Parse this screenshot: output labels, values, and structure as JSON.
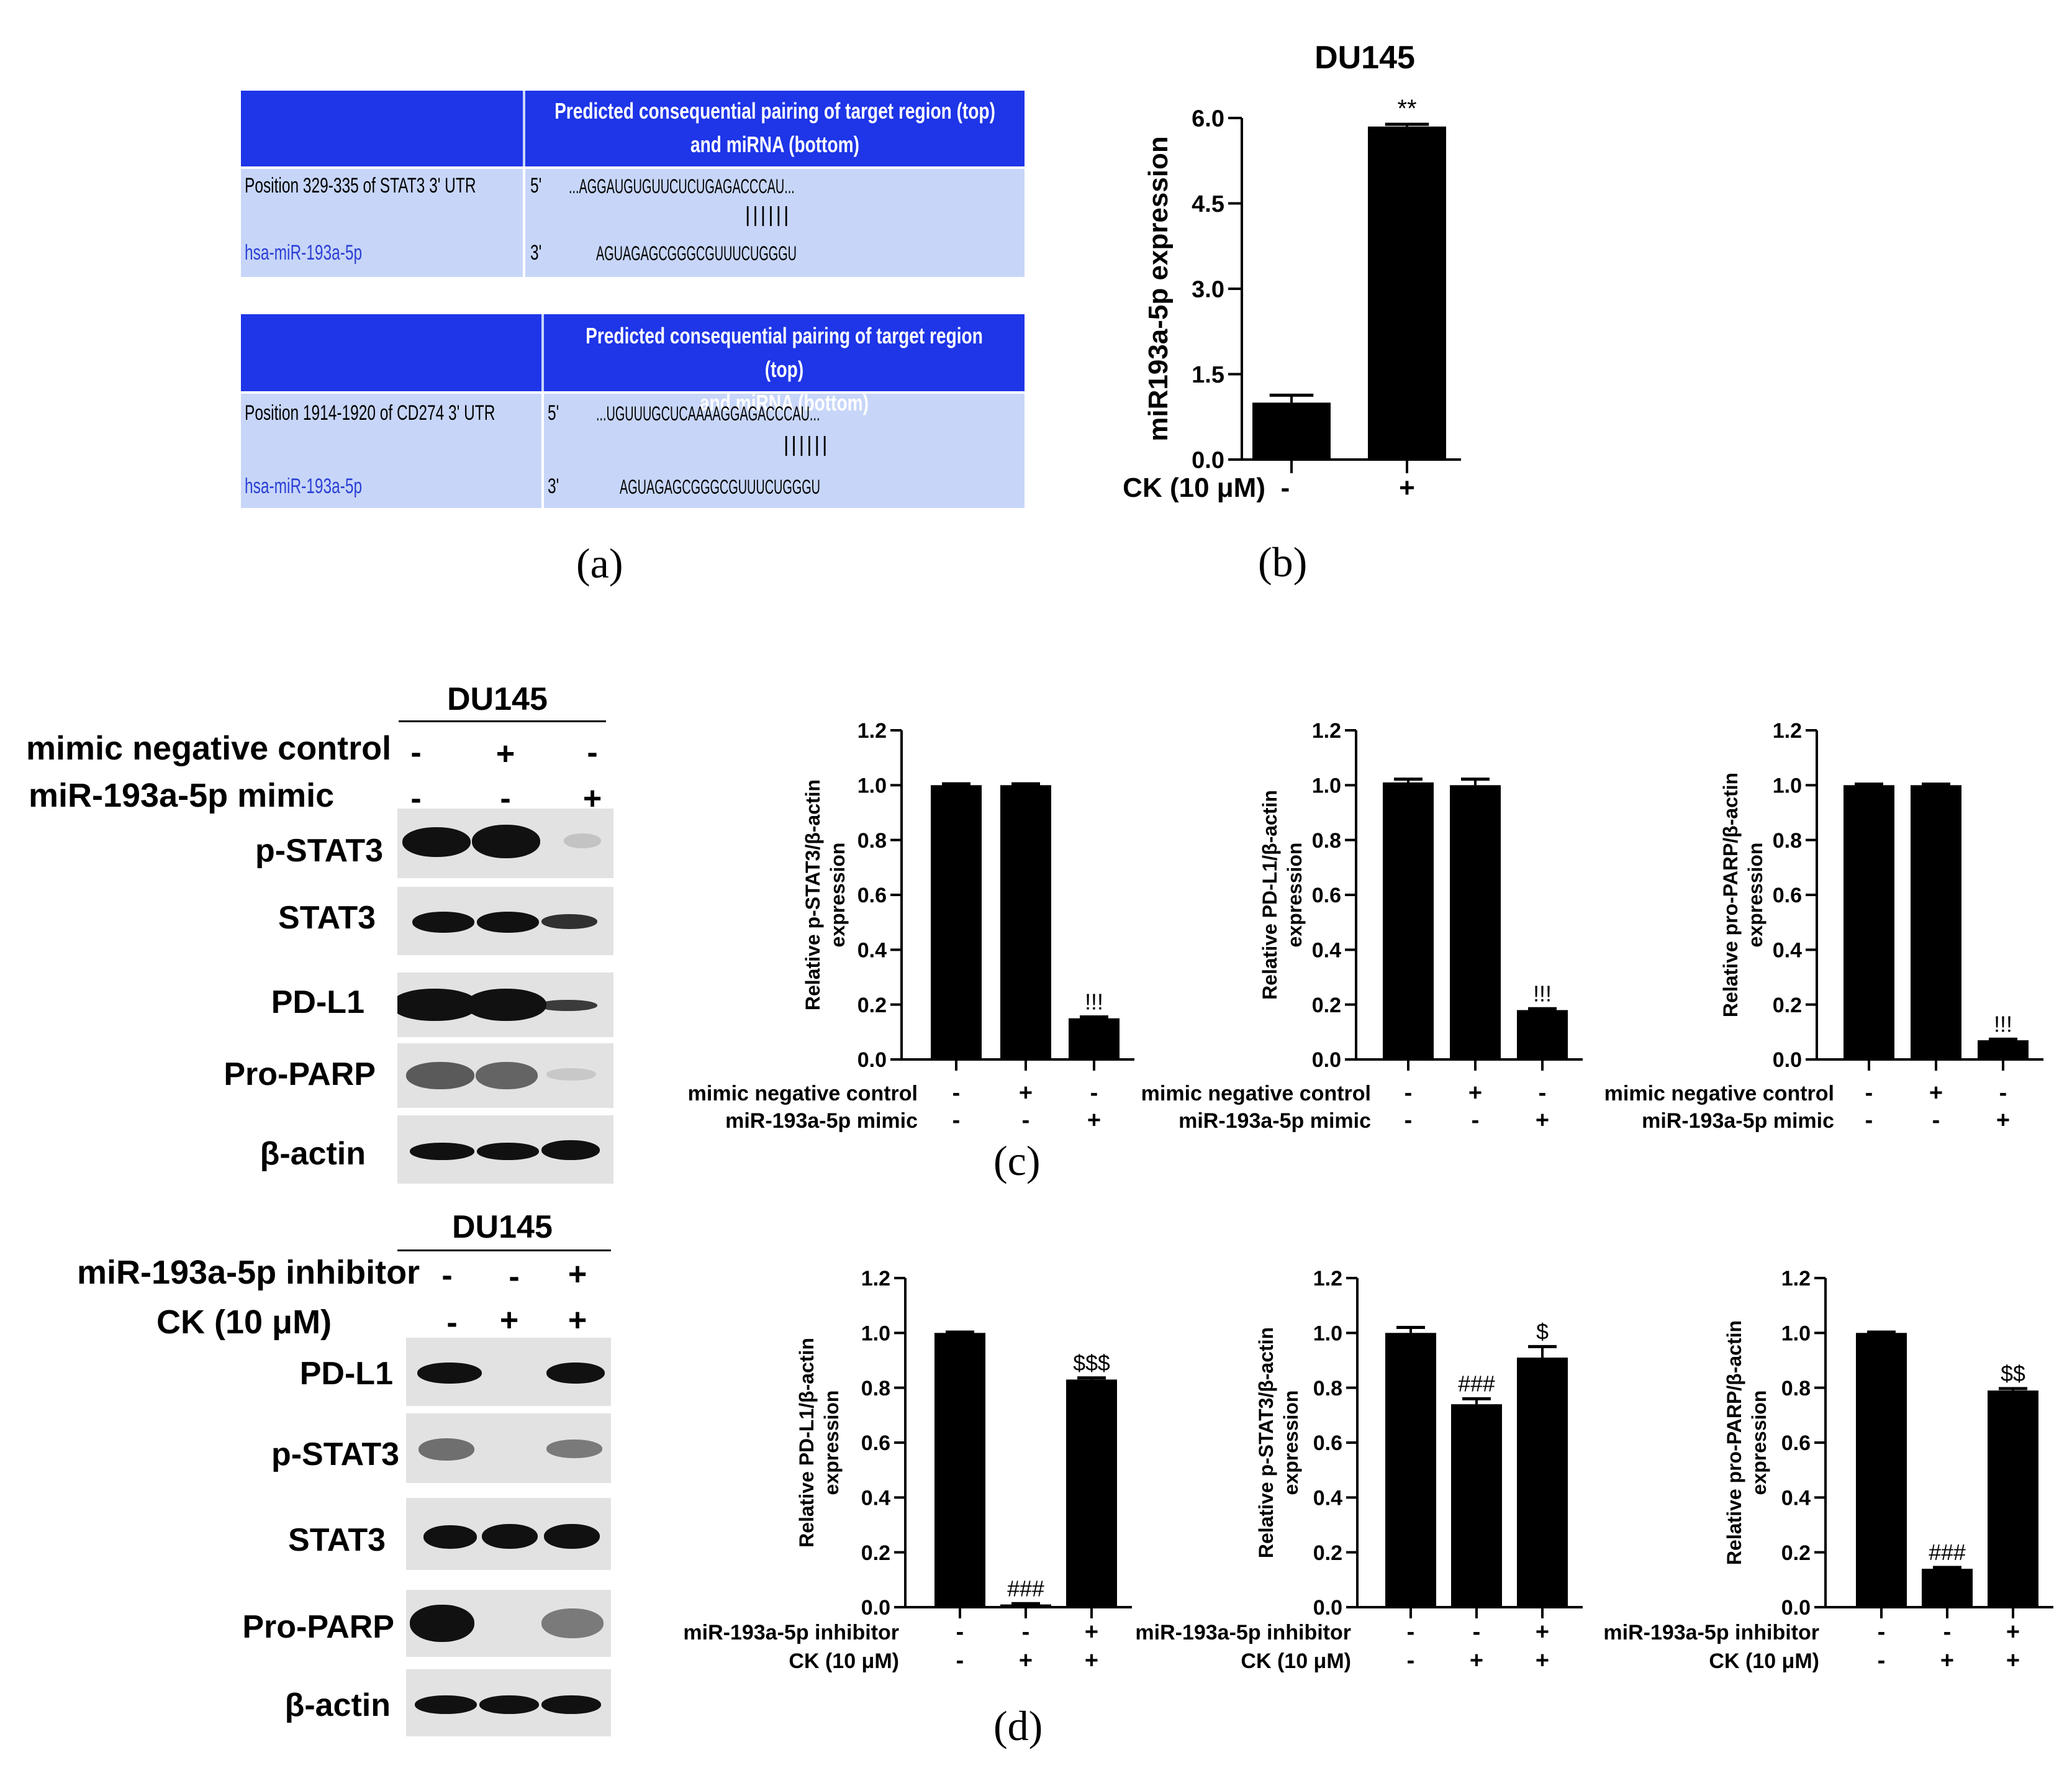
{
  "panel_a": {
    "label": "(a)",
    "tables": [
      {
        "header": "Predicted consequential pairing of target region (top)\nand miRNA (bottom)",
        "target_label": "Position 329-335 of STAT3 3' UTR",
        "target_prime": "5'",
        "target_seq": "...AGGAUGUGUUCUCUGAGACCCAU...",
        "pairing": "||||||",
        "mirna_label": "hsa-miR-193a-5p",
        "mirna_prime": "3'",
        "mirna_seq": "AGUAGAGCGGGCGUUUCUGGGU"
      },
      {
        "header": "Predicted consequential pairing of target region (top)\nand miRNA (bottom)",
        "target_label": "Position 1914-1920 of CD274 3' UTR",
        "target_prime": "5'",
        "target_seq": "...UGUUUGCUCAAAAGGAGACCCAU...",
        "pairing": "||||||",
        "mirna_label": "hsa-miR-193a-5p",
        "mirna_prime": "3'",
        "mirna_seq": "AGUAGAGCGGGCGUUUCUGGGU"
      }
    ]
  },
  "panel_b": {
    "label": "(b)"
  },
  "panel_c": {
    "label": "(c)",
    "western": {
      "title": "DU145",
      "conditions": [
        {
          "label": "mimic negative control",
          "signs": [
            "-",
            "+",
            "-"
          ]
        },
        {
          "label": "miR-193a-5p mimic",
          "signs": [
            "-",
            "-",
            "+"
          ]
        }
      ],
      "proteins": [
        "p-STAT3",
        "STAT3",
        "PD-L1",
        "Pro-PARP",
        "β-actin"
      ]
    }
  },
  "panel_d": {
    "label": "(d)",
    "western": {
      "title": "DU145",
      "conditions": [
        {
          "label": "miR-193a-5p inhibitor",
          "signs": [
            "-",
            "-",
            "+"
          ]
        },
        {
          "label": "CK (10 μM)",
          "signs": [
            "-",
            "+",
            "+"
          ]
        }
      ],
      "proteins": [
        "PD-L1",
        "p-STAT3",
        "STAT3",
        "Pro-PARP",
        "β-actin"
      ]
    }
  },
  "colors": {
    "header_blue": "#1e35e8",
    "table_bg": "#c7d6f8",
    "mirna_text": "#2b3fd6",
    "bar": "#000000"
  },
  "chart_data": [
    {
      "type": "bar",
      "title": "DU145",
      "ylabel": "miR193a-5p expression",
      "ylim": [
        0,
        6.0
      ],
      "yticks": [
        "0.0",
        "1.5",
        "3.0",
        "4.5",
        "6.0"
      ],
      "conditions": [
        {
          "label": "CK (10 μM)",
          "signs": [
            "-",
            "+"
          ]
        }
      ],
      "values": [
        1.0,
        5.85
      ],
      "errors": [
        0.13,
        0.04
      ],
      "annotations": [
        "",
        "**"
      ]
    },
    {
      "type": "bar",
      "ylabel_lines": [
        "Relative p-STAT3/β-actin",
        "expression"
      ],
      "ylim": [
        0,
        1.2
      ],
      "yticks": [
        "0.0",
        "0.2",
        "0.4",
        "0.6",
        "0.8",
        "1.0",
        "1.2"
      ],
      "conditions": [
        {
          "label": "mimic negative control",
          "signs": [
            "-",
            "+",
            "-"
          ]
        },
        {
          "label": "miR-193a-5p mimic",
          "signs": [
            "-",
            "-",
            "+"
          ]
        }
      ],
      "values": [
        1.0,
        1.0,
        0.15
      ],
      "errors": [
        0.005,
        0.005,
        0.005
      ],
      "annotations": [
        "",
        "",
        "!!!"
      ]
    },
    {
      "type": "bar",
      "ylabel_lines": [
        "Relative PD-L1/β-actin",
        "expression"
      ],
      "ylim": [
        0,
        1.2
      ],
      "yticks": [
        "0.0",
        "0.2",
        "0.4",
        "0.6",
        "0.8",
        "1.0",
        "1.2"
      ],
      "conditions": [
        {
          "label": "mimic negative control",
          "signs": [
            "-",
            "+",
            "-"
          ]
        },
        {
          "label": "miR-193a-5p mimic",
          "signs": [
            "-",
            "-",
            "+"
          ]
        }
      ],
      "values": [
        1.01,
        1.0,
        0.18
      ],
      "errors": [
        0.012,
        0.022,
        0.005
      ],
      "annotations": [
        "",
        "",
        "!!!"
      ]
    },
    {
      "type": "bar",
      "ylabel_lines": [
        "Relative pro-PARP/β-actin",
        "expression"
      ],
      "ylim": [
        0,
        1.2
      ],
      "yticks": [
        "0.0",
        "0.2",
        "0.4",
        "0.6",
        "0.8",
        "1.0",
        "1.2"
      ],
      "conditions": [
        {
          "label": "mimic negative control",
          "signs": [
            "-",
            "+",
            "-"
          ]
        },
        {
          "label": "miR-193a-5p mimic",
          "signs": [
            "-",
            "-",
            "+"
          ]
        }
      ],
      "values": [
        1.0,
        1.0,
        0.07
      ],
      "errors": [
        0.004,
        0.004,
        0.004
      ],
      "annotations": [
        "",
        "",
        "!!!"
      ]
    },
    {
      "type": "bar",
      "ylabel_lines": [
        "Relative PD-L1/β-actin",
        "expression"
      ],
      "ylim": [
        0,
        1.2
      ],
      "yticks": [
        "0.0",
        "0.2",
        "0.4",
        "0.6",
        "0.8",
        "1.0",
        "1.2"
      ],
      "conditions": [
        {
          "label": "miR-193a-5p inhibitor",
          "signs": [
            "-",
            "-",
            "+"
          ]
        },
        {
          "label": "CK (10 μM)",
          "signs": [
            "-",
            "+",
            "+"
          ]
        }
      ],
      "values": [
        1.0,
        0.01,
        0.83
      ],
      "errors": [
        0.003,
        0.003,
        0.006
      ],
      "annotations": [
        "",
        "###",
        "$$$"
      ]
    },
    {
      "type": "bar",
      "ylabel_lines": [
        "Relative p-STAT3/β-actin",
        "expression"
      ],
      "ylim": [
        0,
        1.2
      ],
      "yticks": [
        "0.0",
        "0.2",
        "0.4",
        "0.6",
        "0.8",
        "1.0",
        "1.2"
      ],
      "conditions": [
        {
          "label": "miR-193a-5p inhibitor",
          "signs": [
            "-",
            "-",
            "+"
          ]
        },
        {
          "label": "CK (10 μM)",
          "signs": [
            "-",
            "+",
            "+"
          ]
        }
      ],
      "values": [
        1.0,
        0.74,
        0.91
      ],
      "errors": [
        0.02,
        0.02,
        0.04
      ],
      "annotations": [
        "",
        "###",
        "$"
      ]
    },
    {
      "type": "bar",
      "ylabel_lines": [
        "Relative pro-PARP/β-actin",
        "expression"
      ],
      "ylim": [
        0,
        1.2
      ],
      "yticks": [
        "0.0",
        "0.2",
        "0.4",
        "0.6",
        "0.8",
        "1.0",
        "1.2"
      ],
      "conditions": [
        {
          "label": "miR-193a-5p inhibitor",
          "signs": [
            "-",
            "-",
            "+"
          ]
        },
        {
          "label": "CK (10 μM)",
          "signs": [
            "-",
            "+",
            "+"
          ]
        }
      ],
      "values": [
        1.0,
        0.14,
        0.79
      ],
      "errors": [
        0.003,
        0.005,
        0.007
      ],
      "annotations": [
        "",
        "###",
        "$$"
      ]
    }
  ]
}
